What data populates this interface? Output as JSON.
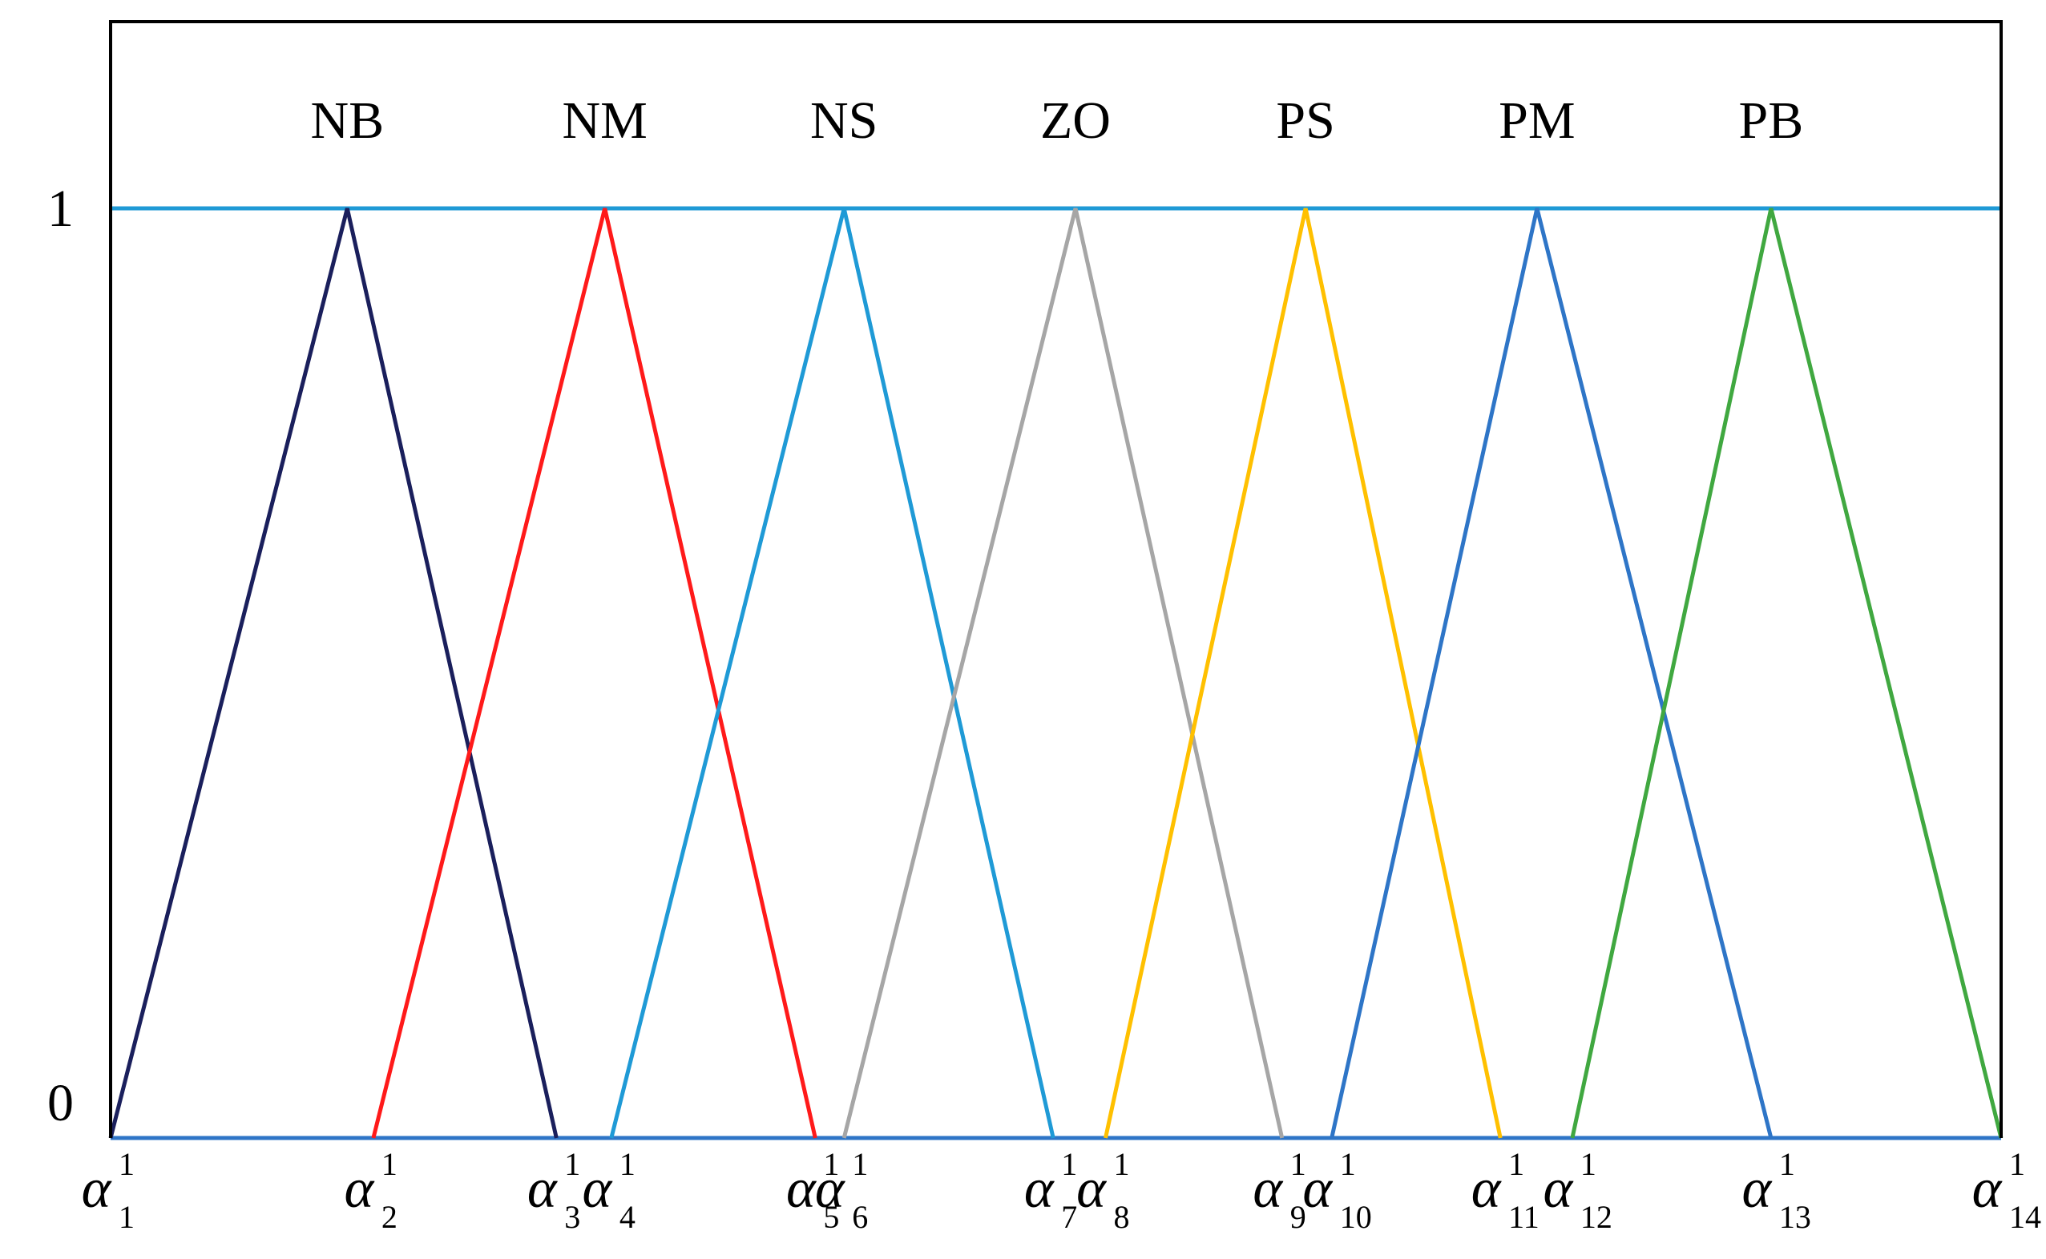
{
  "chart_data": {
    "type": "line",
    "title": "",
    "xlabel": "",
    "ylabel": "",
    "ylim": [
      0,
      1
    ],
    "y_tick_labels": [
      "0",
      "1"
    ],
    "x_tick_labels": [
      {
        "base": "α",
        "sup": "1",
        "sub": "1"
      },
      {
        "base": "α",
        "sup": "1",
        "sub": "2"
      },
      {
        "base": "α",
        "sup": "1",
        "sub": "3"
      },
      {
        "base": "α",
        "sup": "1",
        "sub": "4"
      },
      {
        "base": "α",
        "sup": "1",
        "sub": "5"
      },
      {
        "base": "α",
        "sup": "1",
        "sub": "6"
      },
      {
        "base": "α",
        "sup": "1",
        "sub": "7"
      },
      {
        "base": "α",
        "sup": "1",
        "sub": "8"
      },
      {
        "base": "α",
        "sup": "1",
        "sub": "9"
      },
      {
        "base": "α",
        "sup": "1",
        "sub": "10"
      },
      {
        "base": "α",
        "sup": "1",
        "sub": "11"
      },
      {
        "base": "α",
        "sup": "1",
        "sub": "12"
      },
      {
        "base": "α",
        "sup": "1",
        "sub": "13"
      },
      {
        "base": "α",
        "sup": "1",
        "sub": "14"
      }
    ],
    "x_ticks": [
      0,
      201,
      341,
      383,
      539,
      561,
      721,
      761,
      896,
      934,
      1063,
      1118,
      1270,
      1446
    ],
    "xlim": [
      0,
      1446
    ],
    "series": [
      {
        "name": "NB",
        "color": "#1a1f5c",
        "points": [
          [
            0,
            0
          ],
          [
            181,
            1
          ],
          [
            341,
            0
          ]
        ]
      },
      {
        "name": "NM",
        "color": "#ff1a1a",
        "points": [
          [
            201,
            0
          ],
          [
            378,
            1
          ],
          [
            539,
            0
          ]
        ]
      },
      {
        "name": "NS",
        "color": "#1f9ad6",
        "points": [
          [
            383,
            0
          ],
          [
            561,
            1
          ],
          [
            721,
            0
          ]
        ]
      },
      {
        "name": "ZO",
        "color": "#a6a6a6",
        "points": [
          [
            561,
            0
          ],
          [
            738,
            1
          ],
          [
            896,
            0
          ]
        ]
      },
      {
        "name": "PS",
        "color": "#ffc000",
        "points": [
          [
            761,
            0
          ],
          [
            914,
            1
          ],
          [
            1063,
            0
          ]
        ]
      },
      {
        "name": "PM",
        "color": "#2e75c7",
        "points": [
          [
            934,
            0
          ],
          [
            1091,
            1
          ],
          [
            1270,
            0
          ]
        ]
      },
      {
        "name": "PB",
        "color": "#40a840",
        "points": [
          [
            1118,
            0
          ],
          [
            1270,
            1
          ],
          [
            1446,
            0
          ]
        ]
      }
    ],
    "reference_lines": [
      {
        "y": 1,
        "color": "#1f9ad6"
      },
      {
        "y": 0,
        "color": "#2e75c7"
      }
    ],
    "grid": false,
    "legend": "top, labels above each peak"
  }
}
